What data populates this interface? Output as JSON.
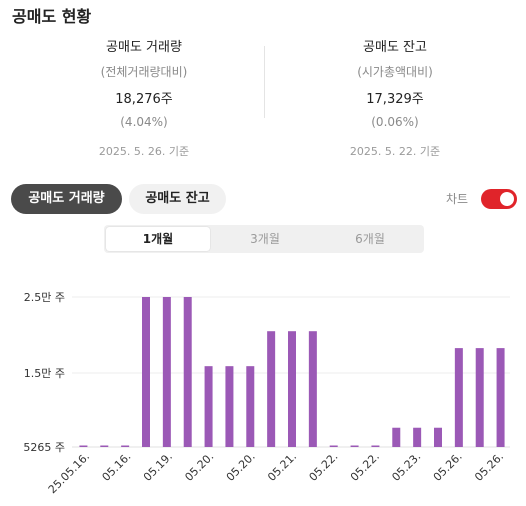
{
  "page": {
    "title": "공매도 현황"
  },
  "stats": {
    "volume": {
      "label": "공매도 거래량",
      "sub": "(전체거래량대비)",
      "value": "18,276주",
      "pct": "(4.04%)",
      "date": "2025. 5. 26. 기준"
    },
    "balance": {
      "label": "공매도 잔고",
      "sub": "(시가총액대비)",
      "value": "17,329주",
      "pct": "(0.06%)",
      "date": "2025. 5. 22. 기준"
    }
  },
  "tabs": {
    "volume": "공매도 거래량",
    "balance": "공매도 잔고"
  },
  "toggle": {
    "label": "차트",
    "on": true
  },
  "periods": [
    "1개월",
    "3개월",
    "6개월"
  ],
  "selected_period": "1개월",
  "colors": {
    "bar": "#9b59b6",
    "toggle_on": "#e0242a",
    "active_tab": "#4a4a4a"
  },
  "chart_data": {
    "type": "bar",
    "y_tick_labels": [
      "2.5만 주",
      "1.5만 주",
      "5265 주"
    ],
    "y_ticks": [
      25000,
      15000,
      5265
    ],
    "ylim": [
      5265,
      25000
    ],
    "x_tick_labels": [
      "25.05.16.",
      "05.16.",
      "05.19.",
      "05.20.",
      "05.20.",
      "05.21.",
      "05.22.",
      "05.22.",
      "05.23.",
      "05.26.",
      "05.26."
    ],
    "values": [
      5400,
      5400,
      5400,
      25000,
      25000,
      25000,
      15900,
      15900,
      15900,
      20500,
      20500,
      20500,
      5265,
      5265,
      5265,
      7800,
      7800,
      7800,
      18276,
      18276,
      18276
    ]
  }
}
